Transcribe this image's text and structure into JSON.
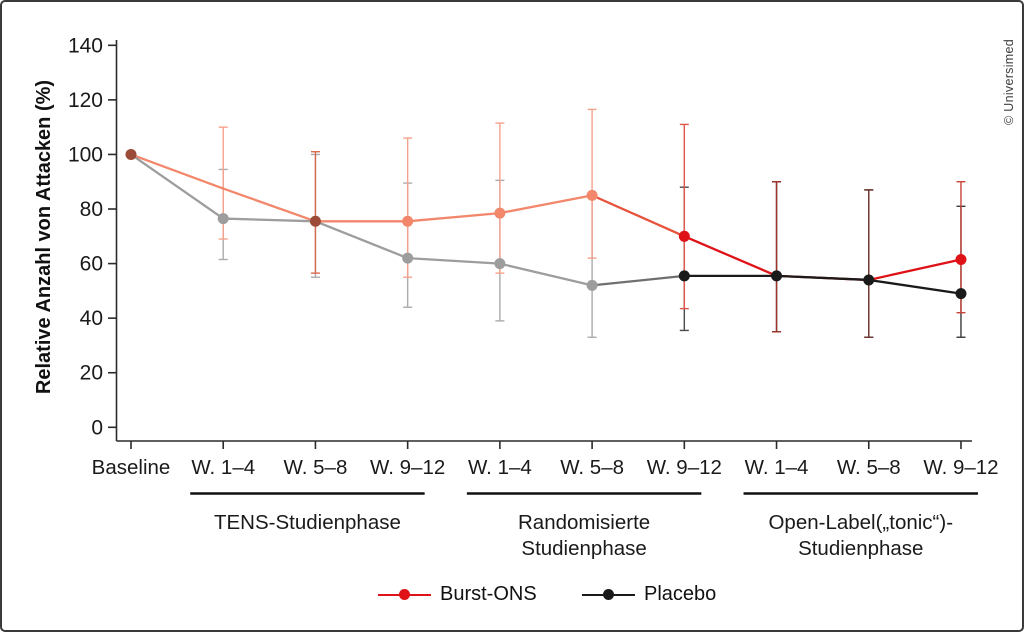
{
  "figure": {
    "copyright": "© Universimed",
    "background": "#ffffff",
    "border_color": "#3a3a3a"
  },
  "chart_data": {
    "type": "line",
    "title": "",
    "ylabel": "Relative Anzahl von Attacken (%)",
    "xlabel": "",
    "ylim": [
      0,
      140
    ],
    "y_ticks": [
      0,
      20,
      40,
      60,
      80,
      100,
      120,
      140
    ],
    "grid": false,
    "legend_position": "bottom",
    "categories": [
      "Baseline",
      "W. 1–4",
      "W. 5–8",
      "W. 9–12",
      "W. 1–4",
      "W. 5–8",
      "W. 9–12",
      "W. 1–4",
      "W. 5–8",
      "W. 9–12"
    ],
    "phases": [
      {
        "label": "TENS-Studienphase",
        "lines": [
          "TENS-Studienphase"
        ],
        "from_index": 1,
        "to_index": 3
      },
      {
        "label": "Randomisierte Studienphase",
        "lines": [
          "Randomisierte",
          "Studienphase"
        ],
        "from_index": 4,
        "to_index": 6
      },
      {
        "label": "Open-Label(„tonic“)-Studienphase",
        "lines": [
          "Open-Label(„tonic“)-",
          "Studienphase"
        ],
        "from_index": 7,
        "to_index": 9
      }
    ],
    "legend": [
      {
        "name": "Burst-ONS",
        "color": "#de1217"
      },
      {
        "name": "Placebo",
        "color": "#1a1a1a"
      }
    ],
    "series": [
      {
        "name": "Burst-ONS",
        "values": [
          100,
          87.5,
          75.5,
          75.5,
          78.5,
          85,
          70,
          55.5,
          54,
          61.5
        ],
        "err_lo": [
          null,
          69,
          56.5,
          55,
          56.5,
          62,
          43.5,
          35,
          33,
          42
        ],
        "err_hi": [
          null,
          110,
          101,
          106,
          111.5,
          116.5,
          111,
          90,
          87,
          90
        ],
        "segment_colors": [
          "#f2876c",
          "#f2876c",
          "#f2876c",
          "#f2876c",
          "#f2876c",
          "#e8523c",
          "#de1217",
          "#de1217",
          "#de1217"
        ],
        "marker_colors": [
          "#9c4b38",
          null,
          "#9c4b38",
          "#f2876c",
          "#f2876c",
          "#f2876c",
          "#de1217",
          null,
          null,
          "#de1217"
        ],
        "errbar_colors": [
          null,
          "#f5a28c",
          "#d96a52",
          "#f5a28c",
          "#f5a28c",
          "#f5a28c",
          "#e0564a",
          "#a03328",
          "#6e3730",
          "#c8423a"
        ]
      },
      {
        "name": "Placebo",
        "values": [
          100,
          76.5,
          75.5,
          62,
          60,
          52,
          55.5,
          55.5,
          54,
          49
        ],
        "err_lo": [
          null,
          61.5,
          55,
          44,
          39,
          33,
          35.5,
          35,
          33,
          33
        ],
        "err_hi": [
          null,
          94.5,
          100,
          89.5,
          90.5,
          85,
          88,
          90,
          87,
          81
        ],
        "segment_colors": [
          "#9d9d9d",
          "#9d9d9d",
          "#9d9d9d",
          "#9d9d9d",
          "#9d9d9d",
          "#6f6f6f",
          "#1a1a1a",
          "#1a1a1a",
          "#1a1a1a"
        ],
        "marker_colors": [
          null,
          "#9d9d9d",
          null,
          "#9d9d9d",
          "#9d9d9d",
          "#9d9d9d",
          "#1a1a1a",
          "#1a1a1a",
          "#1a1a1a",
          "#1a1a1a"
        ],
        "errbar_colors": [
          null,
          "#ababab",
          "#ababab",
          "#ababab",
          "#ababab",
          "#ababab",
          "#4a4a4a",
          "#3b3b3b",
          "#3e3e3e",
          "#3a3a3a"
        ]
      }
    ]
  }
}
